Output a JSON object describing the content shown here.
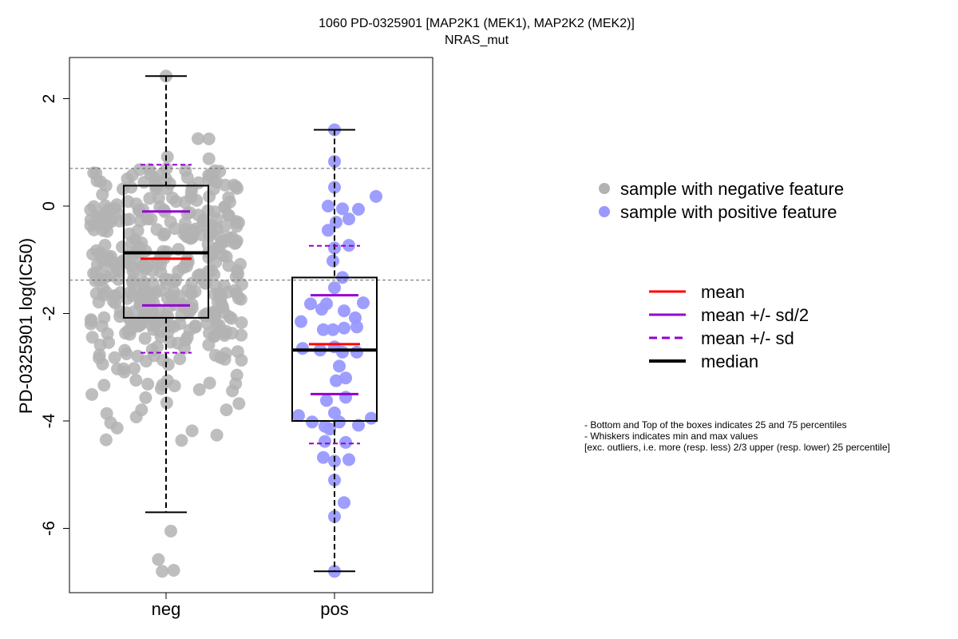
{
  "chart_data": {
    "type": "box",
    "title": "1060 PD-0325901 [MAP2K1 (MEK1), MAP2K2 (MEK2)]",
    "subtitle": "NRAS_mut",
    "ylabel": "PD-0325901 log(IC50)",
    "xlabel": "",
    "ylim": [
      -7.2,
      2.8
    ],
    "yticks": [
      2,
      0,
      -2,
      -4,
      -6
    ],
    "categories": [
      "neg",
      "pos"
    ],
    "reference_lines": [
      0.7,
      -1.38
    ],
    "groups": [
      {
        "name": "neg",
        "color": "#b3b3b3",
        "whisker_low": -5.7,
        "q1": -2.08,
        "median": -0.87,
        "q3": 0.38,
        "whisker_high": 2.42,
        "mean": -0.98,
        "mean_minus_half_sd": -1.85,
        "mean_plus_half_sd": -0.1,
        "mean_minus_sd": -2.73,
        "mean_plus_sd": 0.77,
        "outliers": [
          -6.05,
          -6.58,
          -6.78,
          -6.8
        ]
      },
      {
        "name": "pos",
        "color": "#9999ff",
        "whisker_low": -6.8,
        "q1": -4.0,
        "median": -2.68,
        "q3": -1.33,
        "whisker_high": 1.42,
        "mean": -2.57,
        "mean_minus_half_sd": -3.5,
        "mean_plus_half_sd": -1.66,
        "mean_minus_sd": -4.42,
        "mean_plus_sd": -0.74,
        "points": [
          1.42,
          0.83,
          0.35,
          0.18,
          0.0,
          -0.05,
          -0.06,
          -0.24,
          -0.3,
          -0.45,
          -0.73,
          -0.78,
          -1.02,
          -1.33,
          -1.52,
          -1.8,
          -1.82,
          -1.82,
          -1.92,
          -1.95,
          -2.08,
          -2.15,
          -2.25,
          -2.3,
          -2.3,
          -2.27,
          -2.62,
          -2.65,
          -2.68,
          -2.72,
          -2.72,
          -2.98,
          -3.2,
          -3.25,
          -3.56,
          -3.62,
          -3.85,
          -3.9,
          -3.95,
          -4.02,
          -4.02,
          -4.08,
          -4.1,
          -4.15,
          -4.38,
          -4.4,
          -4.68,
          -4.72,
          -4.75,
          -5.1,
          -5.52,
          -5.78,
          -6.8
        ]
      }
    ],
    "legend_points": [
      {
        "label": "sample with negative feature",
        "color": "#b3b3b3"
      },
      {
        "label": "sample with positive feature",
        "color": "#9999ff"
      }
    ],
    "legend_lines": [
      {
        "label": "mean",
        "color": "#ff0000",
        "dash": false
      },
      {
        "label": "mean +/- sd/2",
        "color": "#9400d3",
        "dash": false
      },
      {
        "label": "mean +/- sd",
        "color": "#9400d3",
        "dash": true
      },
      {
        "label": "median",
        "color": "#000000",
        "dash": false
      }
    ],
    "notes": [
      "- Bottom and Top of the boxes indicates 25 and 75 percentiles",
      "- Whiskers indicates min and max values",
      "[exc. outliers, i.e. more (resp. less) 2/3 upper (resp. lower) 25 percentile]"
    ]
  }
}
